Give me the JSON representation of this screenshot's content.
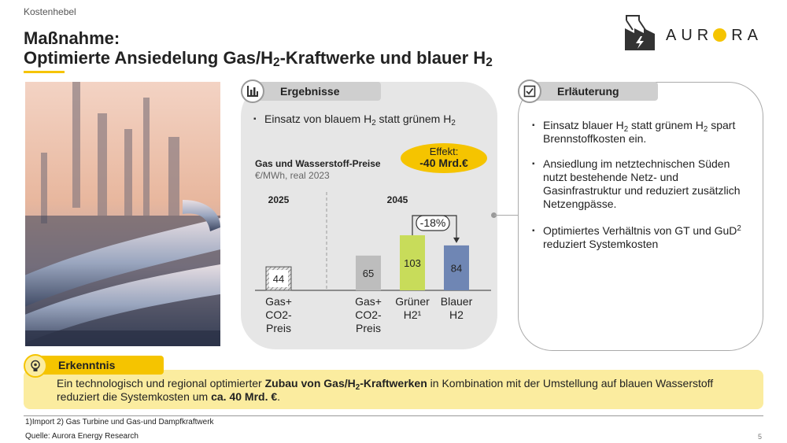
{
  "header": {
    "kicker": "Kostenhebel",
    "title_line1": "Maßnahme:",
    "title_line2_pre": "Optimierte Ansiedelung Gas/H",
    "title_line2_sub": "2",
    "title_line2_mid": "-Kraftwerke und blauer H",
    "title_line2_sub2": "2"
  },
  "logo": {
    "text_a": "AUR",
    "text_b": "RA",
    "icon": "factory-lightning-icon",
    "accent": "#f5c400"
  },
  "results": {
    "tab_label": "Ergebnisse",
    "icon": "bar-chart-icon",
    "bullet_pre": "Einsatz von blauem H",
    "bullet_sub1": "2",
    "bullet_mid": " statt grünem H",
    "bullet_sub2": "2"
  },
  "effect": {
    "label": "Effekt:",
    "value": "-40 Mrd.€"
  },
  "explanation": {
    "tab_label": "Erläuterung",
    "icon": "checkbox-icon",
    "b1_pre": "Einsatz blauer H",
    "b1_sub1": "2",
    "b1_mid": " statt grünem H",
    "b1_sub2": "2",
    "b1_post": " spart Brennstoffkosten ein.",
    "b2": "Ansiedlung im netztechnischen Süden nutzt bestehende Netz- und Gasinfrastruktur und reduziert zusätzlich Netzengpässe.",
    "b3_pre": "Optimiertes Verhältnis von GT und GuD",
    "b3_sup": "2",
    "b3_post": " reduziert Systemkosten"
  },
  "chart_data": {
    "type": "bar",
    "title": "Gas und Wasserstoff-Preise",
    "subtitle": "€/MWh, real 2023",
    "groups": [
      "2025",
      "2045"
    ],
    "categories": [
      "Gas+ CO2- Preis",
      "Gas+ CO2- Preis",
      "Grüner H2¹",
      "Blauer H2"
    ],
    "category_lines": [
      [
        "Gas+",
        "CO2-",
        "Preis"
      ],
      [
        "Gas+",
        "CO2-",
        "Preis"
      ],
      [
        "Grüner",
        "H2¹"
      ],
      [
        "Blauer",
        "H2"
      ]
    ],
    "group_of": [
      "2025",
      "2045",
      "2045",
      "2045"
    ],
    "values": [
      44,
      65,
      103,
      84
    ],
    "colors": [
      "#ffffff",
      "#bdbdbd",
      "#c8dc5a",
      "#6f86b4"
    ],
    "hatched": [
      true,
      false,
      false,
      false
    ],
    "delta_label": "-18%",
    "ylim": [
      0,
      110
    ]
  },
  "insight": {
    "tab_label": "Erkenntnis",
    "icon": "lightbulb-gear-icon",
    "t1": "Ein technologisch und regional optimierter ",
    "t2_bold": "Zubau von Gas/H",
    "t2_sub": "2",
    "t3_bold": "-Kraftwerken",
    "t4": " in Kombination mit der Umstellung auf blauen Wasserstoff reduziert die Systemkosten um ",
    "t5_bold": "ca. 40 Mrd. €",
    "t6": "."
  },
  "footer": {
    "footnote": "1)Import   2) Gas Turbine und Gas-und Dampfkraftwerk",
    "source": "Quelle: Aurora Energy Research",
    "page": "5"
  }
}
